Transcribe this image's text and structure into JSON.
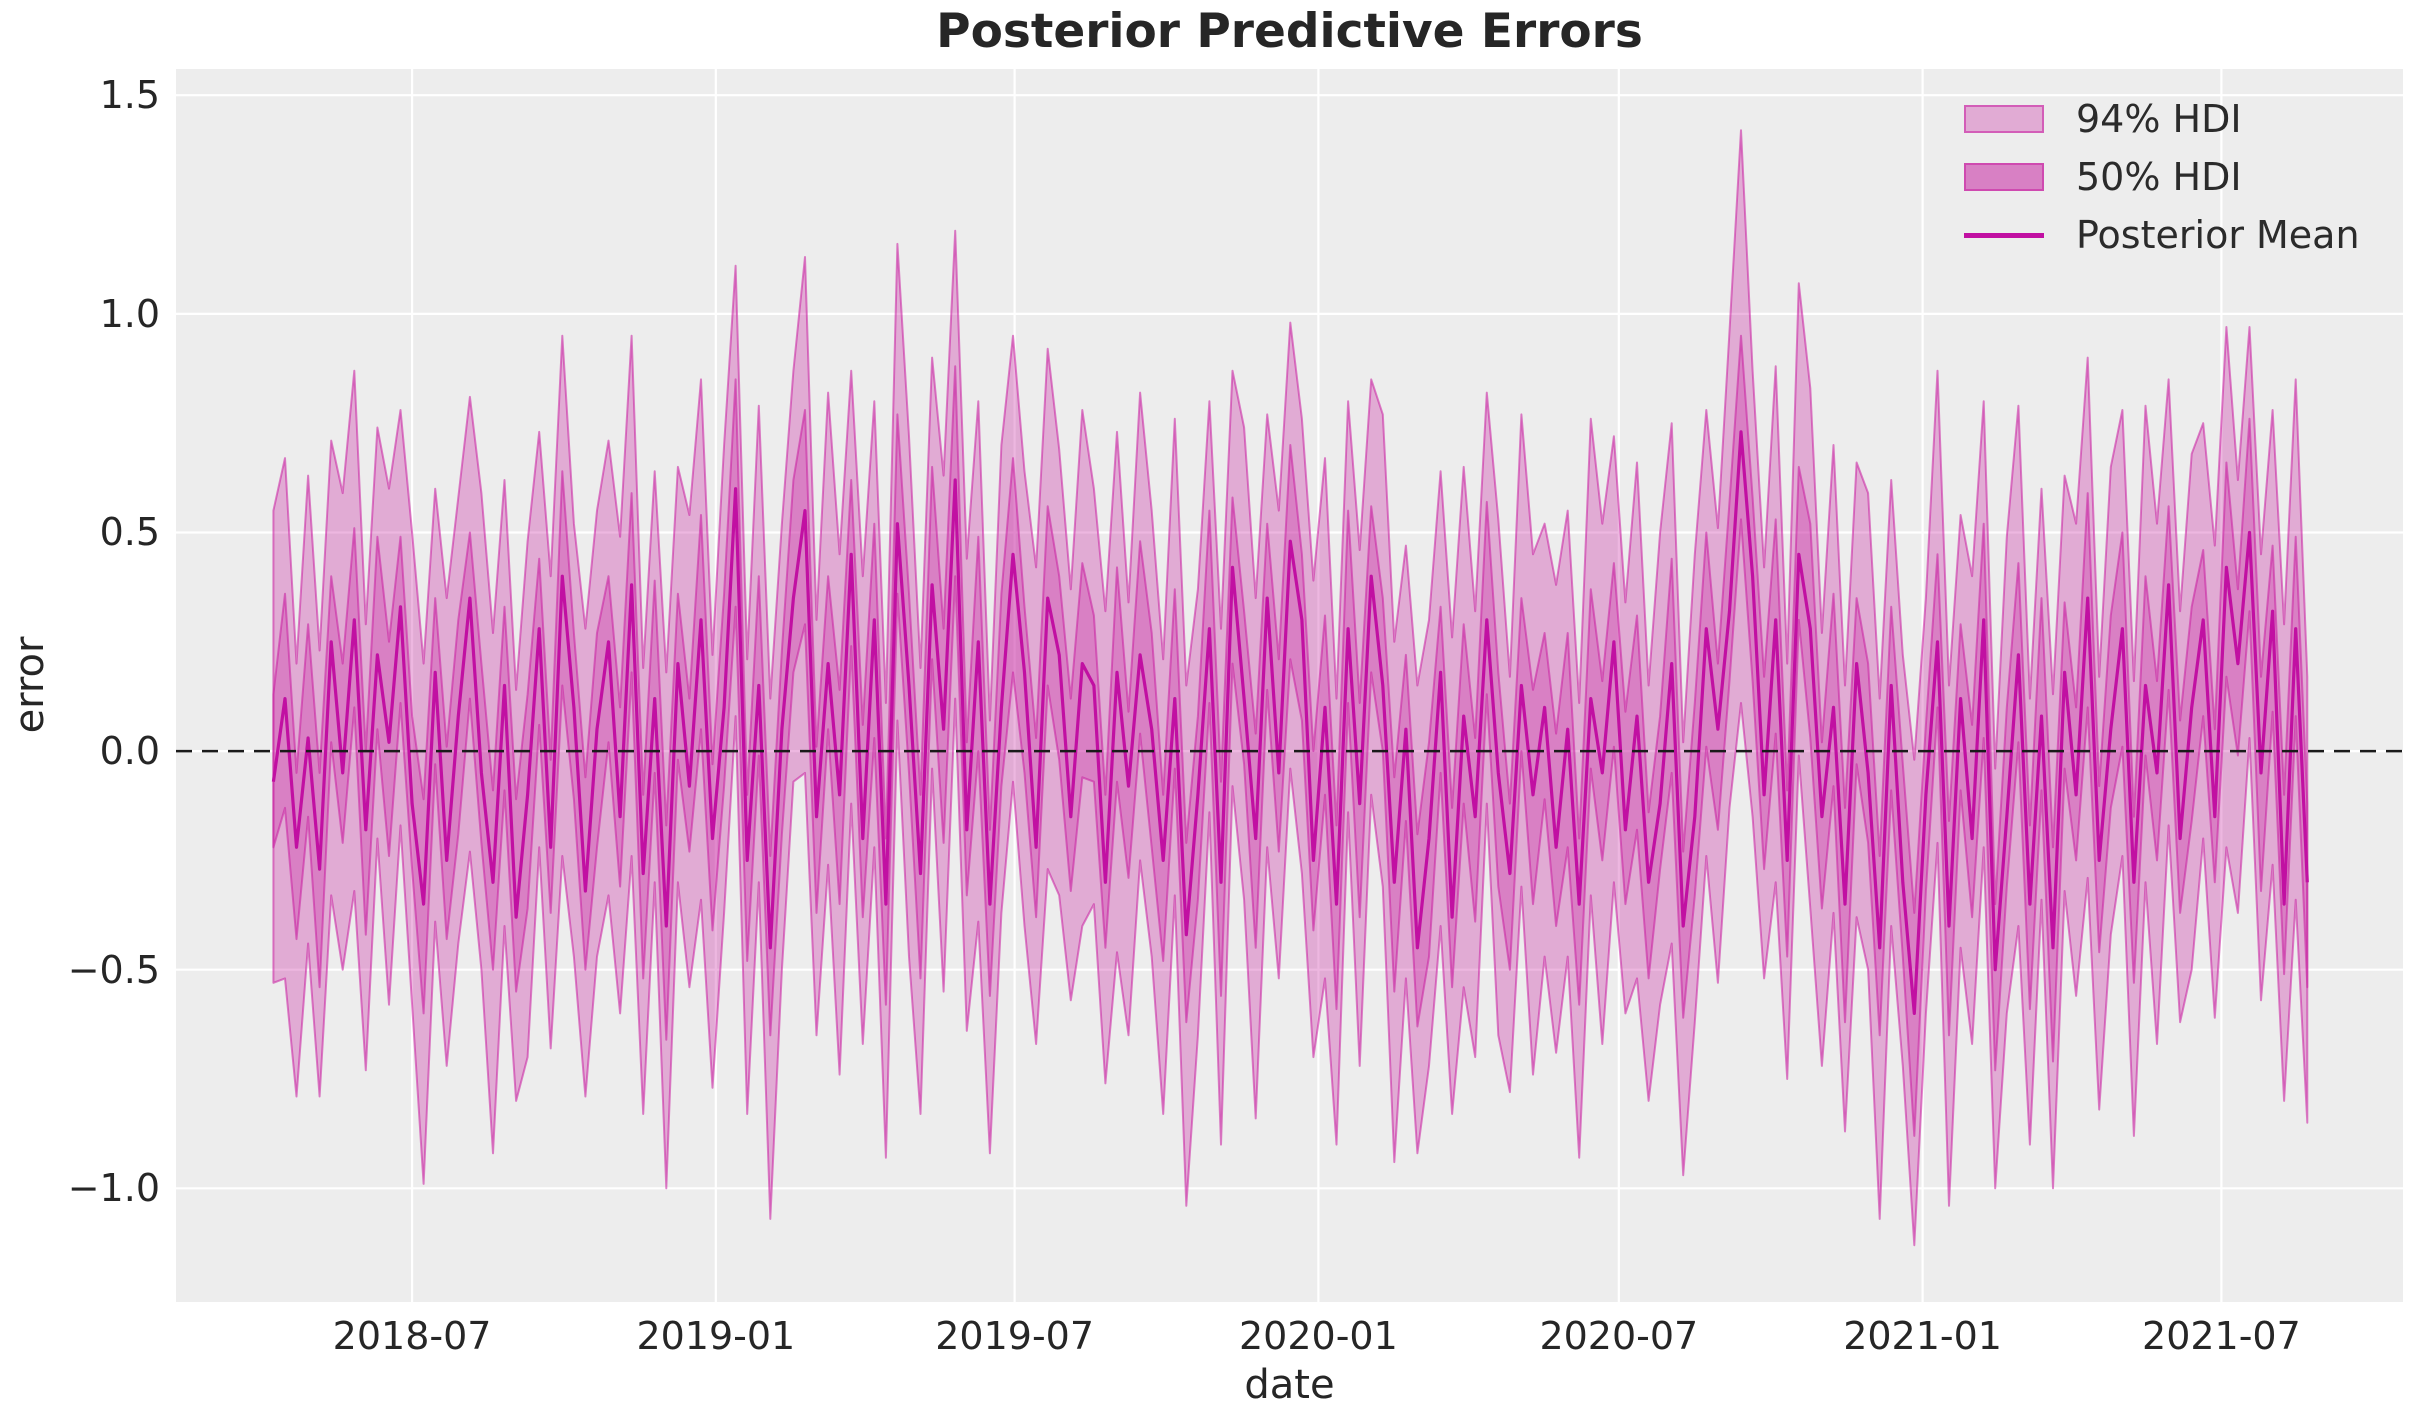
{
  "chart_data": {
    "type": "area",
    "title": "Posterior Predictive Errors",
    "xlabel": "date",
    "ylabel": "error",
    "legend_position": "upper right",
    "grid": true,
    "x_start_date": "2018-04-08",
    "x_step_days": 7,
    "n_points": 177,
    "xlim": [
      "2018-02-08",
      "2021-10-19"
    ],
    "ylim": [
      -1.26,
      1.56
    ],
    "x_ticks": [
      {
        "label": "2018-07",
        "date": "2018-07-01"
      },
      {
        "label": "2019-01",
        "date": "2019-01-01"
      },
      {
        "label": "2019-07",
        "date": "2019-07-01"
      },
      {
        "label": "2020-01",
        "date": "2020-01-01"
      },
      {
        "label": "2020-07",
        "date": "2020-07-01"
      },
      {
        "label": "2021-01",
        "date": "2021-01-01"
      },
      {
        "label": "2021-07",
        "date": "2021-07-01"
      }
    ],
    "y_ticks": [
      {
        "label": "1.5",
        "value": 1.5
      },
      {
        "label": "1.0",
        "value": 1.0
      },
      {
        "label": "0.5",
        "value": 0.5
      },
      {
        "label": "0.0",
        "value": 0.0
      },
      {
        "label": "−0.5",
        "value": -0.5
      },
      {
        "label": "−1.0",
        "value": -1.0
      }
    ],
    "zero_line": {
      "value": 0.0,
      "style": "dashed",
      "color": "#1a1a1a"
    },
    "legend": [
      {
        "label": "94% HDI",
        "type": "band",
        "swatch": "light"
      },
      {
        "label": "50% HDI",
        "type": "band",
        "swatch": "medium"
      },
      {
        "label": "Posterior Mean",
        "type": "line"
      }
    ],
    "colors": {
      "axes_background": "#EDEDED",
      "grid": "#FFFFFF",
      "band_base_rgb": "200,30,160",
      "hdi94_fill_alpha": 0.32,
      "hdi50_fill_alpha": 0.3,
      "band_edge_alpha": 0.55,
      "legend_swatch_94": "#E1ABD4",
      "legend_swatch_50": "#D880C4",
      "mean_line": "#C110A2",
      "text": "#262626"
    },
    "series": {
      "mean": [
        -0.07,
        0.12,
        -0.22,
        0.03,
        -0.27,
        0.25,
        -0.05,
        0.3,
        -0.18,
        0.22,
        0.02,
        0.33,
        -0.12,
        -0.35,
        0.18,
        -0.25,
        0.08,
        0.35,
        -0.05,
        -0.3,
        0.15,
        -0.38,
        -0.1,
        0.28,
        -0.22,
        0.4,
        0.1,
        -0.32,
        0.05,
        0.25,
        -0.15,
        0.38,
        -0.28,
        0.12,
        -0.4,
        0.2,
        -0.08,
        0.3,
        -0.2,
        0.1,
        0.6,
        -0.25,
        0.15,
        -0.45,
        0.05,
        0.35,
        0.55,
        -0.15,
        0.2,
        -0.1,
        0.45,
        -0.2,
        0.3,
        -0.35,
        0.52,
        0.15,
        -0.28,
        0.38,
        0.05,
        0.62,
        -0.18,
        0.25,
        -0.35,
        0.1,
        0.45,
        0.18,
        -0.22,
        0.35,
        0.22,
        -0.15,
        0.2,
        0.15,
        -0.3,
        0.18,
        -0.08,
        0.22,
        0.05,
        -0.25,
        0.12,
        -0.42,
        -0.1,
        0.28,
        -0.3,
        0.42,
        0.12,
        -0.2,
        0.35,
        -0.05,
        0.48,
        0.3,
        -0.25,
        0.1,
        -0.35,
        0.28,
        -0.12,
        0.4,
        0.15,
        -0.3,
        0.05,
        -0.45,
        -0.2,
        0.18,
        -0.38,
        0.08,
        -0.15,
        0.3,
        -0.05,
        -0.28,
        0.15,
        -0.1,
        0.1,
        -0.22,
        0.05,
        -0.35,
        0.12,
        -0.05,
        0.25,
        -0.18,
        0.08,
        -0.3,
        -0.12,
        0.2,
        -0.4,
        -0.15,
        0.28,
        0.05,
        0.32,
        0.73,
        0.4,
        -0.1,
        0.3,
        -0.25,
        0.45,
        0.28,
        -0.15,
        0.1,
        -0.35,
        0.2,
        -0.05,
        -0.45,
        0.15,
        -0.3,
        -0.6,
        -0.1,
        0.25,
        -0.4,
        0.12,
        -0.2,
        0.3,
        -0.5,
        -0.15,
        0.22,
        -0.35,
        0.08,
        -0.45,
        0.18,
        -0.1,
        0.35,
        -0.25,
        0.05,
        0.28,
        -0.3,
        0.15,
        -0.05,
        0.38,
        -0.2,
        0.1,
        0.3,
        -0.15,
        0.42,
        0.2,
        0.5,
        -0.05,
        0.32,
        -0.35,
        0.28,
        -0.3
      ],
      "hdi50_width_pattern": [
        0.2,
        0.24,
        0.17,
        0.26,
        0.22,
        0.15,
        0.25,
        0.21,
        0.18,
        0.27,
        0.23,
        0.16
      ],
      "hdi94_width_pattern": [
        0.52,
        0.58,
        0.45,
        0.62,
        0.55,
        0.42,
        0.6,
        0.5,
        0.46,
        0.64,
        0.57,
        0.47
      ],
      "overrides": {
        "40": {
          "u94": 1.11,
          "u50": 0.85
        },
        "59": {
          "u94": 1.19,
          "u50": 0.88
        },
        "127": {
          "u94": 1.42,
          "u50": 0.95
        },
        "142": {
          "l94": -1.13,
          "l50": -0.88
        },
        "149": {
          "l94": -1.0
        },
        "154": {
          "l94": -1.0
        },
        "171": {
          "u94": 0.97
        }
      }
    }
  }
}
